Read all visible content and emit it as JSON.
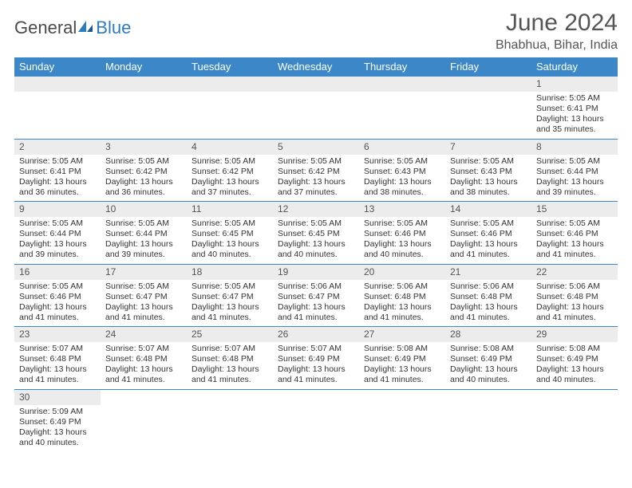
{
  "logo": {
    "part1": "General",
    "part2": "Blue"
  },
  "title": "June 2024",
  "location": "Bhabhua, Bihar, India",
  "colors": {
    "header_bg": "#3b87c8",
    "header_text": "#ffffff",
    "daynum_bg": "#ececec",
    "border": "#3b87c8",
    "text": "#333333",
    "title_color": "#555555"
  },
  "days_of_week": [
    "Sunday",
    "Monday",
    "Tuesday",
    "Wednesday",
    "Thursday",
    "Friday",
    "Saturday"
  ],
  "weeks": [
    [
      null,
      null,
      null,
      null,
      null,
      null,
      {
        "n": "1",
        "sr": "Sunrise: 5:05 AM",
        "ss": "Sunset: 6:41 PM",
        "d1": "Daylight: 13 hours",
        "d2": "and 35 minutes."
      }
    ],
    [
      {
        "n": "2",
        "sr": "Sunrise: 5:05 AM",
        "ss": "Sunset: 6:41 PM",
        "d1": "Daylight: 13 hours",
        "d2": "and 36 minutes."
      },
      {
        "n": "3",
        "sr": "Sunrise: 5:05 AM",
        "ss": "Sunset: 6:42 PM",
        "d1": "Daylight: 13 hours",
        "d2": "and 36 minutes."
      },
      {
        "n": "4",
        "sr": "Sunrise: 5:05 AM",
        "ss": "Sunset: 6:42 PM",
        "d1": "Daylight: 13 hours",
        "d2": "and 37 minutes."
      },
      {
        "n": "5",
        "sr": "Sunrise: 5:05 AM",
        "ss": "Sunset: 6:42 PM",
        "d1": "Daylight: 13 hours",
        "d2": "and 37 minutes."
      },
      {
        "n": "6",
        "sr": "Sunrise: 5:05 AM",
        "ss": "Sunset: 6:43 PM",
        "d1": "Daylight: 13 hours",
        "d2": "and 38 minutes."
      },
      {
        "n": "7",
        "sr": "Sunrise: 5:05 AM",
        "ss": "Sunset: 6:43 PM",
        "d1": "Daylight: 13 hours",
        "d2": "and 38 minutes."
      },
      {
        "n": "8",
        "sr": "Sunrise: 5:05 AM",
        "ss": "Sunset: 6:44 PM",
        "d1": "Daylight: 13 hours",
        "d2": "and 39 minutes."
      }
    ],
    [
      {
        "n": "9",
        "sr": "Sunrise: 5:05 AM",
        "ss": "Sunset: 6:44 PM",
        "d1": "Daylight: 13 hours",
        "d2": "and 39 minutes."
      },
      {
        "n": "10",
        "sr": "Sunrise: 5:05 AM",
        "ss": "Sunset: 6:44 PM",
        "d1": "Daylight: 13 hours",
        "d2": "and 39 minutes."
      },
      {
        "n": "11",
        "sr": "Sunrise: 5:05 AM",
        "ss": "Sunset: 6:45 PM",
        "d1": "Daylight: 13 hours",
        "d2": "and 40 minutes."
      },
      {
        "n": "12",
        "sr": "Sunrise: 5:05 AM",
        "ss": "Sunset: 6:45 PM",
        "d1": "Daylight: 13 hours",
        "d2": "and 40 minutes."
      },
      {
        "n": "13",
        "sr": "Sunrise: 5:05 AM",
        "ss": "Sunset: 6:46 PM",
        "d1": "Daylight: 13 hours",
        "d2": "and 40 minutes."
      },
      {
        "n": "14",
        "sr": "Sunrise: 5:05 AM",
        "ss": "Sunset: 6:46 PM",
        "d1": "Daylight: 13 hours",
        "d2": "and 41 minutes."
      },
      {
        "n": "15",
        "sr": "Sunrise: 5:05 AM",
        "ss": "Sunset: 6:46 PM",
        "d1": "Daylight: 13 hours",
        "d2": "and 41 minutes."
      }
    ],
    [
      {
        "n": "16",
        "sr": "Sunrise: 5:05 AM",
        "ss": "Sunset: 6:46 PM",
        "d1": "Daylight: 13 hours",
        "d2": "and 41 minutes."
      },
      {
        "n": "17",
        "sr": "Sunrise: 5:05 AM",
        "ss": "Sunset: 6:47 PM",
        "d1": "Daylight: 13 hours",
        "d2": "and 41 minutes."
      },
      {
        "n": "18",
        "sr": "Sunrise: 5:05 AM",
        "ss": "Sunset: 6:47 PM",
        "d1": "Daylight: 13 hours",
        "d2": "and 41 minutes."
      },
      {
        "n": "19",
        "sr": "Sunrise: 5:06 AM",
        "ss": "Sunset: 6:47 PM",
        "d1": "Daylight: 13 hours",
        "d2": "and 41 minutes."
      },
      {
        "n": "20",
        "sr": "Sunrise: 5:06 AM",
        "ss": "Sunset: 6:48 PM",
        "d1": "Daylight: 13 hours",
        "d2": "and 41 minutes."
      },
      {
        "n": "21",
        "sr": "Sunrise: 5:06 AM",
        "ss": "Sunset: 6:48 PM",
        "d1": "Daylight: 13 hours",
        "d2": "and 41 minutes."
      },
      {
        "n": "22",
        "sr": "Sunrise: 5:06 AM",
        "ss": "Sunset: 6:48 PM",
        "d1": "Daylight: 13 hours",
        "d2": "and 41 minutes."
      }
    ],
    [
      {
        "n": "23",
        "sr": "Sunrise: 5:07 AM",
        "ss": "Sunset: 6:48 PM",
        "d1": "Daylight: 13 hours",
        "d2": "and 41 minutes."
      },
      {
        "n": "24",
        "sr": "Sunrise: 5:07 AM",
        "ss": "Sunset: 6:48 PM",
        "d1": "Daylight: 13 hours",
        "d2": "and 41 minutes."
      },
      {
        "n": "25",
        "sr": "Sunrise: 5:07 AM",
        "ss": "Sunset: 6:48 PM",
        "d1": "Daylight: 13 hours",
        "d2": "and 41 minutes."
      },
      {
        "n": "26",
        "sr": "Sunrise: 5:07 AM",
        "ss": "Sunset: 6:49 PM",
        "d1": "Daylight: 13 hours",
        "d2": "and 41 minutes."
      },
      {
        "n": "27",
        "sr": "Sunrise: 5:08 AM",
        "ss": "Sunset: 6:49 PM",
        "d1": "Daylight: 13 hours",
        "d2": "and 41 minutes."
      },
      {
        "n": "28",
        "sr": "Sunrise: 5:08 AM",
        "ss": "Sunset: 6:49 PM",
        "d1": "Daylight: 13 hours",
        "d2": "and 40 minutes."
      },
      {
        "n": "29",
        "sr": "Sunrise: 5:08 AM",
        "ss": "Sunset: 6:49 PM",
        "d1": "Daylight: 13 hours",
        "d2": "and 40 minutes."
      }
    ],
    [
      {
        "n": "30",
        "sr": "Sunrise: 5:09 AM",
        "ss": "Sunset: 6:49 PM",
        "d1": "Daylight: 13 hours",
        "d2": "and 40 minutes."
      },
      null,
      null,
      null,
      null,
      null,
      null
    ]
  ]
}
